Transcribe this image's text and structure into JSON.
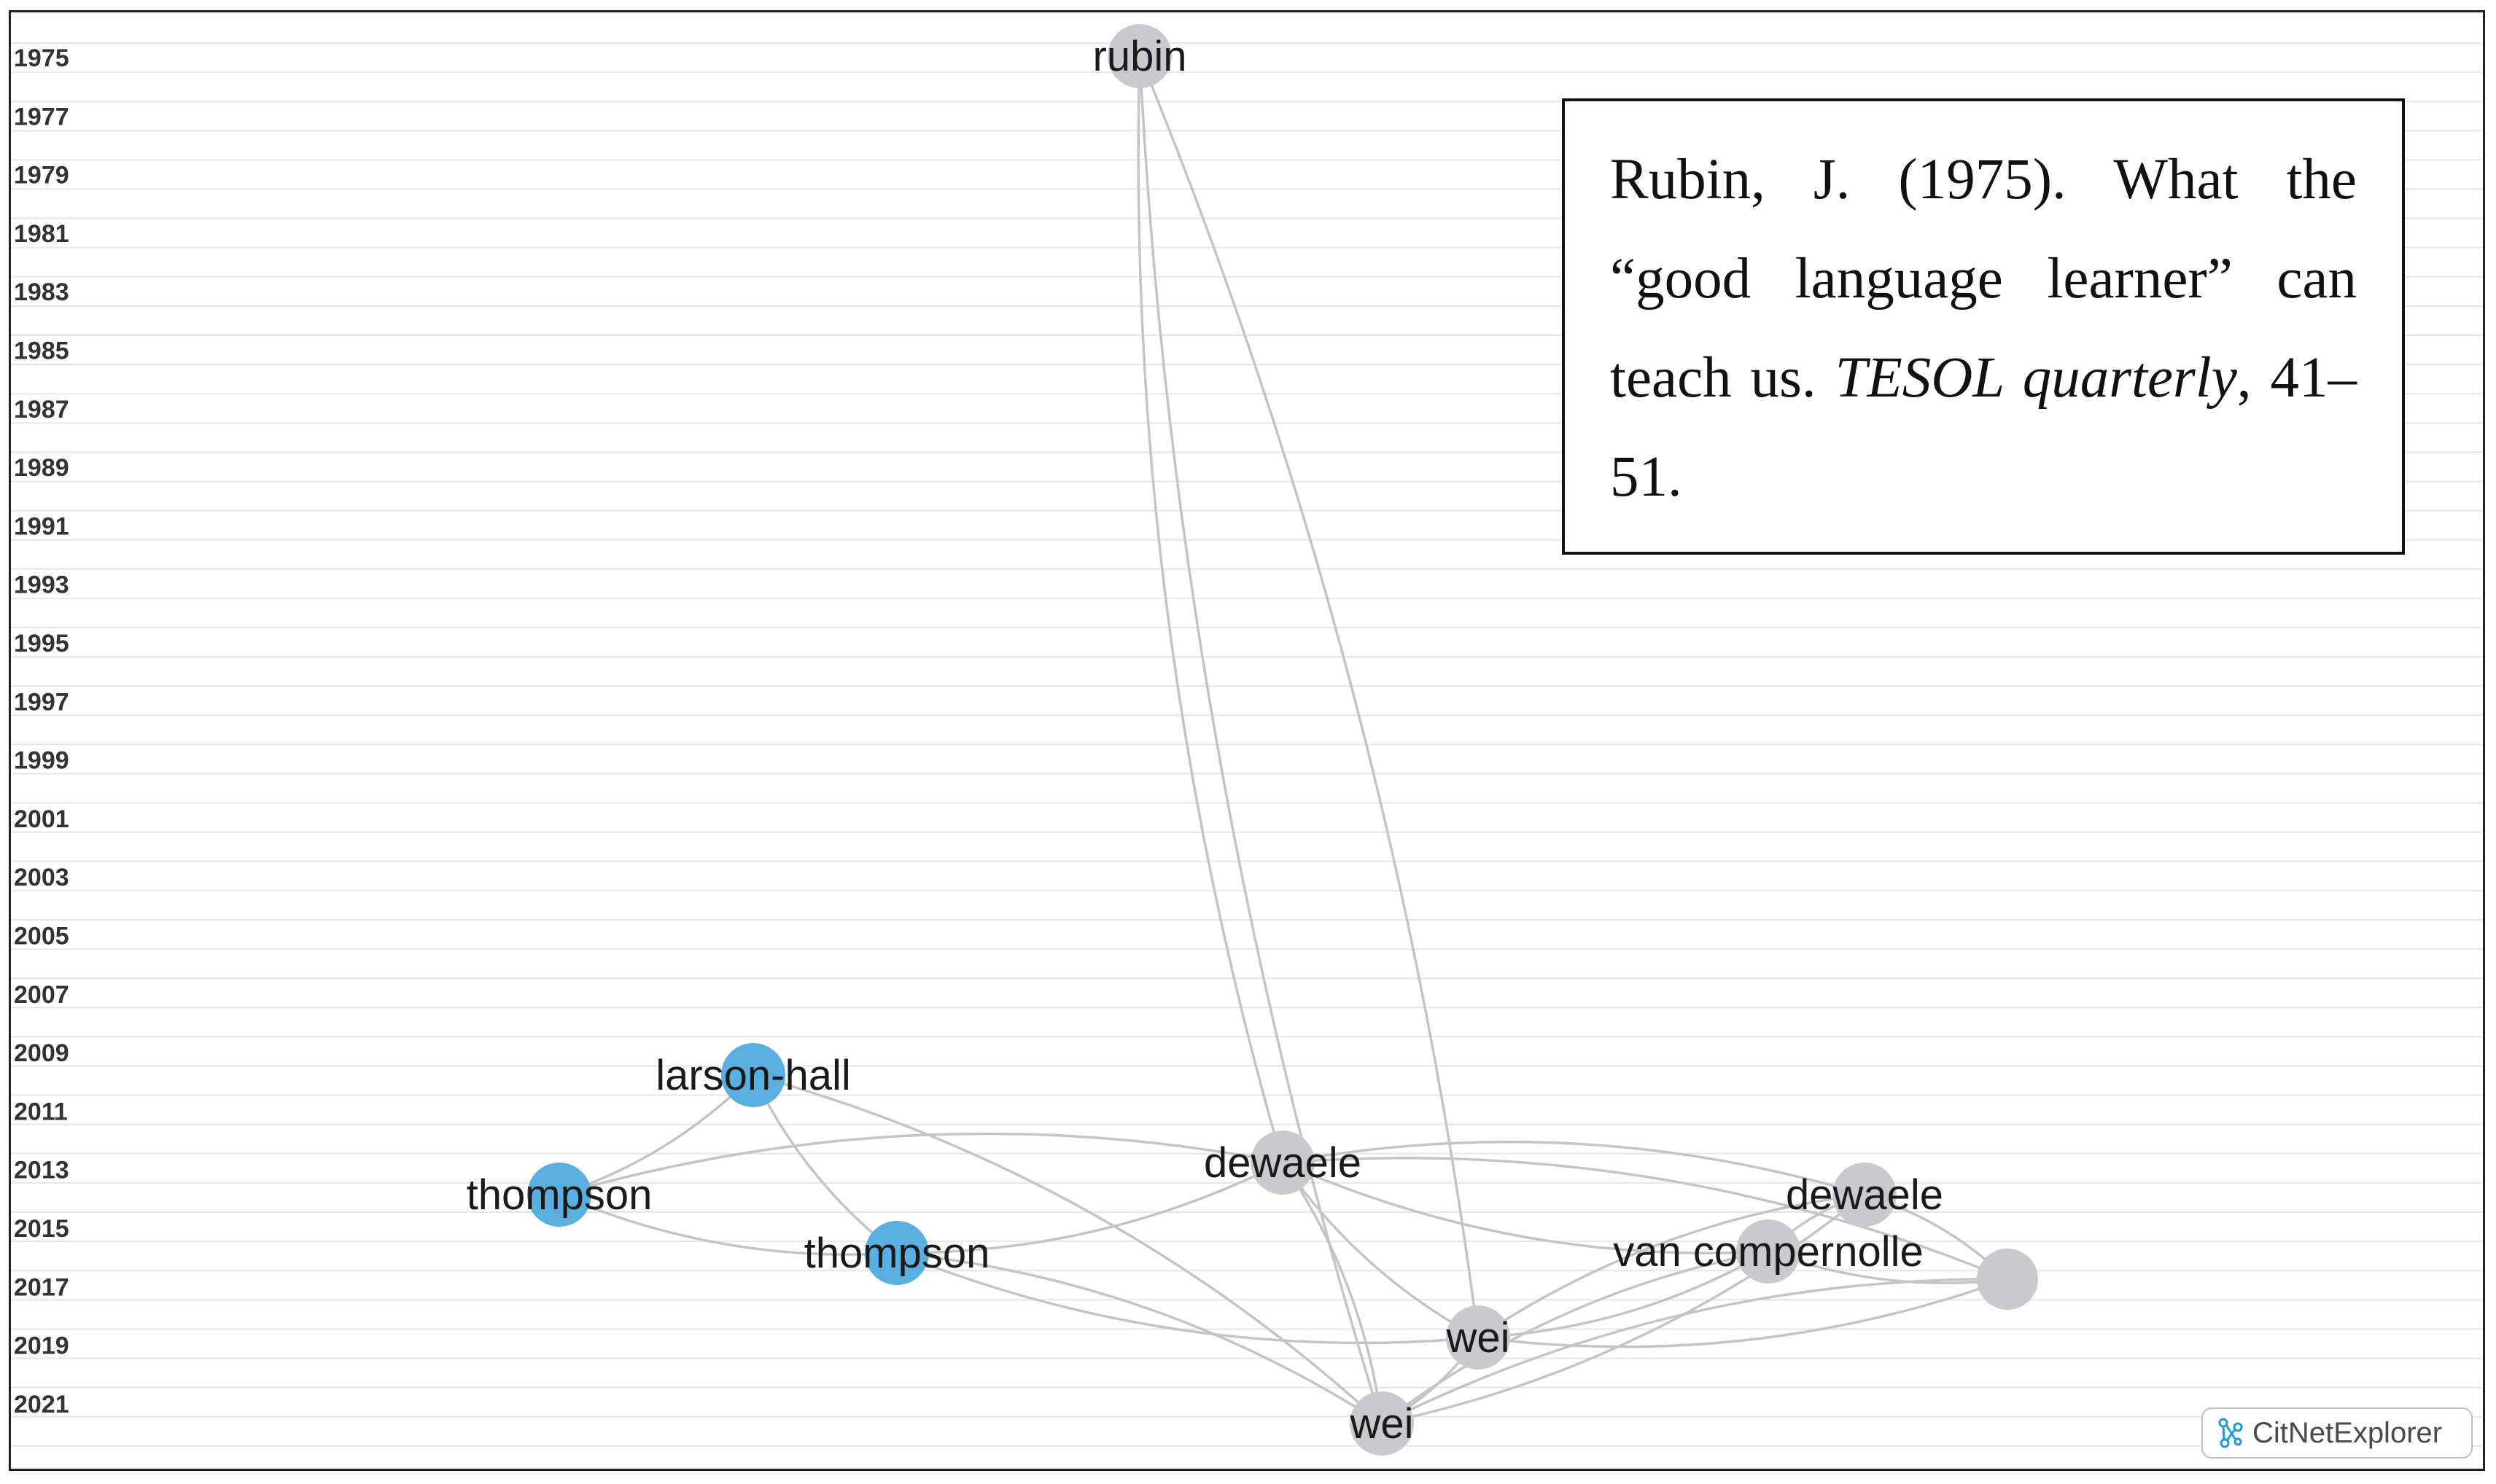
{
  "colors": {
    "highlight_node": "#5aaee0",
    "default_node": "#c8cacd",
    "edge": "#c4c4c4",
    "gridline": "#e6e6e6",
    "badge_icon": "#1e9bd7"
  },
  "year_axis": {
    "labels": [
      "1975",
      "1977",
      "1979",
      "1981",
      "1983",
      "1985",
      "1987",
      "1989",
      "1991",
      "1993",
      "1995",
      "1997",
      "1999",
      "2001",
      "2003",
      "2005",
      "2007",
      "2009",
      "2011",
      "2013",
      "2015",
      "2017",
      "2019",
      "2021"
    ]
  },
  "nodes": [
    {
      "id": "rubin",
      "label": "rubin",
      "year": 1975,
      "highlight": false
    },
    {
      "id": "larson-hall",
      "label": "larson-hall",
      "year": 2010,
      "highlight": true
    },
    {
      "id": "thompson-a",
      "label": "thompson",
      "year": 2014,
      "highlight": true
    },
    {
      "id": "thompson-b",
      "label": "thompson",
      "year": 2016,
      "highlight": true
    },
    {
      "id": "dewaele-a",
      "label": "dewaele",
      "year": 2013,
      "highlight": false
    },
    {
      "id": "dewaele-b",
      "label": "dewaele",
      "year": 2014,
      "highlight": false
    },
    {
      "id": "van-compernolle",
      "label": "van compernolle",
      "year": 2016,
      "highlight": false
    },
    {
      "id": "unlabeled",
      "label": "",
      "year": 2017,
      "highlight": false
    },
    {
      "id": "wei-a",
      "label": "wei",
      "year": 2019,
      "highlight": false
    },
    {
      "id": "wei-b",
      "label": "wei",
      "year": 2022,
      "highlight": false
    }
  ],
  "edges": [
    [
      "thompson-a",
      "larson-hall"
    ],
    [
      "thompson-b",
      "larson-hall"
    ],
    [
      "thompson-a",
      "thompson-b"
    ],
    [
      "thompson-a",
      "dewaele-a"
    ],
    [
      "thompson-b",
      "dewaele-a"
    ],
    [
      "larson-hall",
      "wei-b"
    ],
    [
      "thompson-b",
      "wei-a"
    ],
    [
      "thompson-b",
      "wei-b"
    ],
    [
      "rubin",
      "dewaele-a"
    ],
    [
      "rubin",
      "wei-a"
    ],
    [
      "rubin",
      "wei-b"
    ],
    [
      "dewaele-a",
      "dewaele-b"
    ],
    [
      "dewaele-a",
      "van-compernolle"
    ],
    [
      "dewaele-a",
      "unlabeled"
    ],
    [
      "dewaele-a",
      "wei-a"
    ],
    [
      "dewaele-a",
      "wei-b"
    ],
    [
      "dewaele-b",
      "van-compernolle"
    ],
    [
      "dewaele-b",
      "unlabeled"
    ],
    [
      "dewaele-b",
      "wei-a"
    ],
    [
      "dewaele-b",
      "wei-b"
    ],
    [
      "van-compernolle",
      "unlabeled"
    ],
    [
      "van-compernolle",
      "wei-a"
    ],
    [
      "van-compernolle",
      "wei-b"
    ],
    [
      "unlabeled",
      "wei-a"
    ],
    [
      "unlabeled",
      "wei-b"
    ],
    [
      "wei-a",
      "wei-b"
    ]
  ],
  "reference": {
    "author": "Rubin, J. (1975). What the “good language learner” can teach us. ",
    "journal": "TESOL quar­terly",
    "tail": ", 41–51."
  },
  "badge": {
    "icon": "citnetexplorer-logo-icon",
    "text": "CitNetExplorer"
  }
}
